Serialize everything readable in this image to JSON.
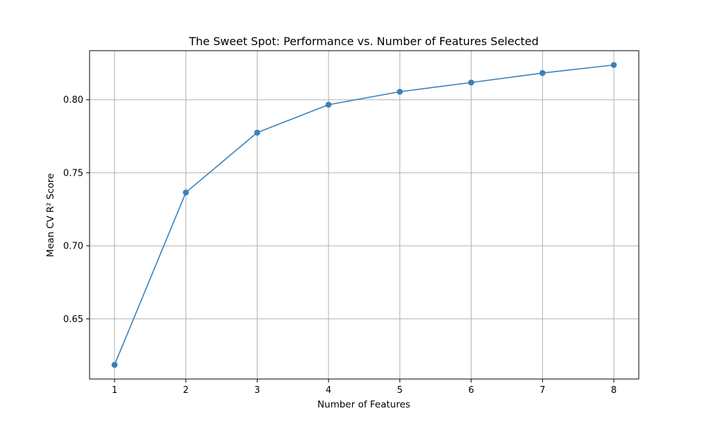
{
  "chart_data": {
    "type": "line",
    "title": "The Sweet Spot: Performance vs. Number of Features Selected",
    "xlabel": "Number of Features",
    "ylabel": "Mean CV R² Score",
    "x": [
      1,
      2,
      3,
      4,
      5,
      6,
      7,
      8
    ],
    "series": [
      {
        "values": [
          0.6185,
          0.7365,
          0.7775,
          0.7966,
          0.8055,
          0.8118,
          0.8183,
          0.8238
        ]
      }
    ],
    "xticks": [
      1,
      2,
      3,
      4,
      5,
      6,
      7,
      8
    ],
    "yticks": [
      0.65,
      0.7,
      0.75,
      0.8
    ],
    "ytick_labels": [
      "0.65",
      "0.70",
      "0.75",
      "0.80"
    ],
    "xlim": [
      0.65,
      8.35
    ],
    "ylim": [
      0.6088,
      0.8336
    ],
    "grid": true,
    "marker": "circle",
    "line_color": "#3a80b9",
    "marker_color": "#3a80b9",
    "grid_color": "#b0b0b0",
    "axes_color": "#000000"
  }
}
